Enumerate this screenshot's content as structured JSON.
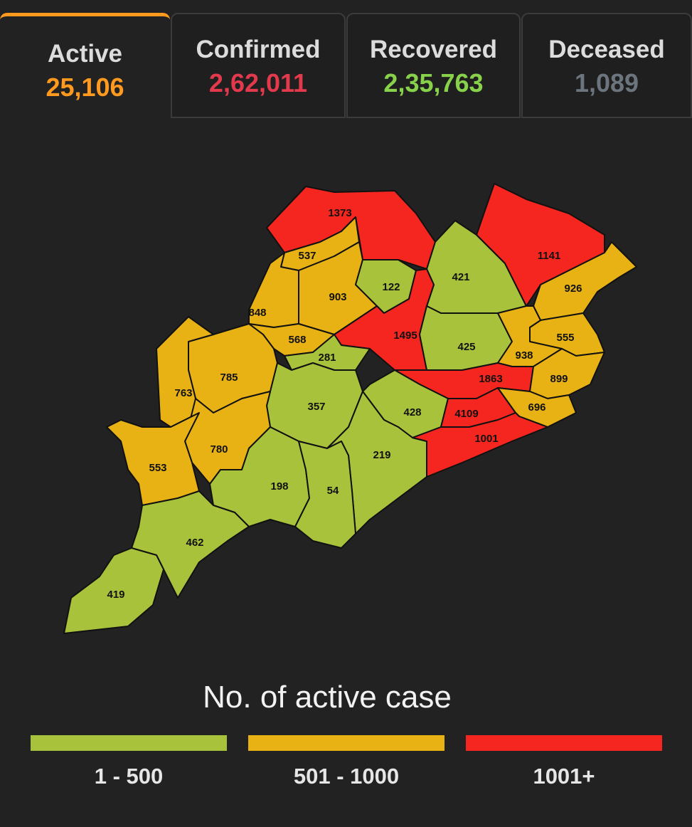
{
  "tabs": {
    "active": 0,
    "items": [
      {
        "label": "Active",
        "value": "25,106",
        "color": "#ff9a1f"
      },
      {
        "label": "Confirmed",
        "value": "2,62,011",
        "color": "#e23a4c"
      },
      {
        "label": "Recovered",
        "value": "2,35,763",
        "color": "#88d14a"
      },
      {
        "label": "Deceased",
        "value": "1,089",
        "color": "#6c757d"
      }
    ]
  },
  "map": {
    "districts": [
      {
        "value": 1373,
        "color": "#f5261f"
      },
      {
        "value": 537,
        "color": "#e8b214"
      },
      {
        "value": 903,
        "color": "#e8b214"
      },
      {
        "value": 122,
        "color": "#a9c23b"
      },
      {
        "value": 421,
        "color": "#a9c23b"
      },
      {
        "value": 1141,
        "color": "#f5261f"
      },
      {
        "value": 926,
        "color": "#e8b214"
      },
      {
        "value": 848,
        "color": "#e8b214"
      },
      {
        "value": 568,
        "color": "#e8b214"
      },
      {
        "value": 1495,
        "color": "#f5261f"
      },
      {
        "value": 425,
        "color": "#a9c23b"
      },
      {
        "value": 555,
        "color": "#e8b214"
      },
      {
        "value": 938,
        "color": "#e8b214"
      },
      {
        "value": 281,
        "color": "#a9c23b"
      },
      {
        "value": 785,
        "color": "#e8b214"
      },
      {
        "value": 763,
        "color": "#e8b214"
      },
      {
        "value": 1863,
        "color": "#f5261f"
      },
      {
        "value": 899,
        "color": "#e8b214"
      },
      {
        "value": 357,
        "color": "#a9c23b"
      },
      {
        "value": 428,
        "color": "#a9c23b"
      },
      {
        "value": 4109,
        "color": "#f5261f"
      },
      {
        "value": 696,
        "color": "#e8b214"
      },
      {
        "value": 780,
        "color": "#e8b214"
      },
      {
        "value": 219,
        "color": "#a9c23b"
      },
      {
        "value": 1001,
        "color": "#f5261f"
      },
      {
        "value": 553,
        "color": "#e8b214"
      },
      {
        "value": 198,
        "color": "#a9c23b"
      },
      {
        "value": 54,
        "color": "#a9c23b"
      },
      {
        "value": 462,
        "color": "#a9c23b"
      },
      {
        "value": 419,
        "color": "#a9c23b"
      }
    ]
  },
  "legend": {
    "title": "No. of active case",
    "items": [
      {
        "label": "1 - 500",
        "color": "#a9c23b"
      },
      {
        "label": "501 - 1000",
        "color": "#e8b214"
      },
      {
        "label": "1001+",
        "color": "#f5261f"
      }
    ]
  }
}
